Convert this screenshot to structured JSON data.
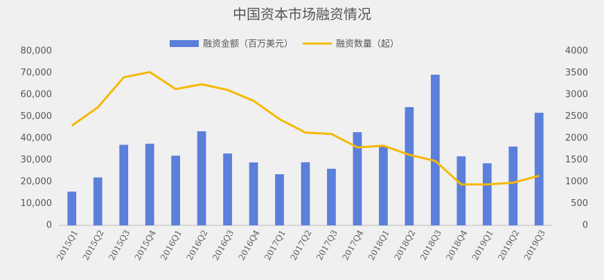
{
  "chart_data": {
    "type": "bar+line",
    "title": "中国资本市场融资情况",
    "categories": [
      "2015Q1",
      "2015Q2",
      "2015Q3",
      "2015Q4",
      "2016Q1",
      "2016Q2",
      "2016Q3",
      "2016Q4",
      "2017Q1",
      "2017Q2",
      "2017Q3",
      "2017Q4",
      "2018Q1",
      "2018Q2",
      "2018Q3",
      "2018Q4",
      "2019Q1",
      "2019Q2",
      "2019Q3"
    ],
    "series": [
      {
        "name": "融资金额（百万美元）",
        "type": "bar",
        "color": "#5b7fdb",
        "values": [
          15500,
          22000,
          37000,
          37500,
          32000,
          43200,
          33000,
          28900,
          23500,
          29000,
          26000,
          42800,
          36500,
          54300,
          69200,
          31700,
          28500,
          36200,
          51700
        ]
      },
      {
        "name": "融资数量（起）",
        "type": "line",
        "axis": "y2",
        "color": "#f5b800",
        "values": [
          2290,
          2710,
          3400,
          3520,
          3130,
          3240,
          3110,
          2860,
          2440,
          2130,
          2100,
          1790,
          1830,
          1620,
          1480,
          940,
          940,
          980,
          1140
        ]
      }
    ],
    "ylim": [
      0,
      80000
    ],
    "yticks": [
      0,
      {
        "value": 10000,
        "label": "10,000"
      },
      {
        "value": 20000,
        "label": "20,000"
      },
      {
        "value": 30000,
        "label": "30,000"
      },
      {
        "value": 40000,
        "label": "40,000"
      },
      {
        "value": 50000,
        "label": "50,000"
      },
      {
        "value": 60000,
        "label": "60,000"
      },
      {
        "value": 70000,
        "label": "70,000"
      },
      {
        "value": 80000,
        "label": "80,000"
      }
    ],
    "y2lim": [
      0,
      4000
    ],
    "y2ticks": [
      0,
      500,
      1000,
      1500,
      2000,
      2500,
      3000,
      3500,
      4000
    ],
    "legend": "top"
  }
}
